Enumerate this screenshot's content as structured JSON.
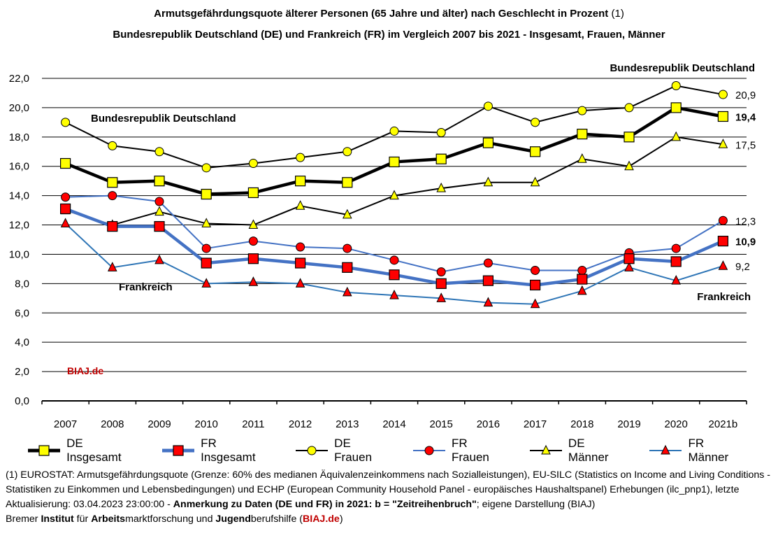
{
  "title": {
    "line1_bold": "Armutsgefährdungsquote älterer Personen (65 Jahre und älter) nach Geschlecht in Prozent",
    "line1_normal": "(1)",
    "line2": "Bundesrepublik Deutschland (DE) und Frankreich (FR) im Vergleich 2007 bis 2021 - Insgesamt, Frauen, Männer"
  },
  "chart_data": {
    "type": "line",
    "categories": [
      "2007",
      "2008",
      "2009",
      "2010",
      "2011",
      "2012",
      "2013",
      "2014",
      "2015",
      "2016",
      "2017",
      "2018",
      "2019",
      "2020",
      "2021b"
    ],
    "ylim": [
      0,
      22
    ],
    "yticks": [
      "0,0",
      "2,0",
      "4,0",
      "6,0",
      "8,0",
      "10,0",
      "12,0",
      "14,0",
      "16,0",
      "18,0",
      "20,0",
      "22,0"
    ],
    "grid": true,
    "series": [
      {
        "name": "DE Insgesamt",
        "color": "#000000",
        "marker": "square",
        "width": "thick",
        "values": [
          16.2,
          14.9,
          15.0,
          14.1,
          14.2,
          15.0,
          14.9,
          16.3,
          16.5,
          17.6,
          17.0,
          18.2,
          18.0,
          20.0,
          19.4
        ],
        "end_label": "19,4",
        "end_bold": true
      },
      {
        "name": "FR Insgesamt",
        "color": "#4472c4",
        "marker": "square",
        "width": "thick",
        "values": [
          13.1,
          11.9,
          11.9,
          9.4,
          9.7,
          9.4,
          9.1,
          8.6,
          8.0,
          8.2,
          7.9,
          8.3,
          9.7,
          9.5,
          10.9
        ],
        "end_label": "10,9",
        "end_bold": true
      },
      {
        "name": "DE Frauen",
        "color": "#000000",
        "marker": "circle",
        "width": "thin",
        "values": [
          19.0,
          17.4,
          17.0,
          15.9,
          16.2,
          16.6,
          17.0,
          18.4,
          18.3,
          20.1,
          19.0,
          19.8,
          20.0,
          21.5,
          20.9
        ],
        "end_label": "20,9",
        "end_bold": false
      },
      {
        "name": "FR Frauen",
        "color": "#4472c4",
        "marker": "circle",
        "width": "thin",
        "values": [
          13.9,
          14.0,
          13.6,
          10.4,
          10.9,
          10.5,
          10.4,
          9.6,
          8.8,
          9.4,
          8.9,
          8.9,
          10.1,
          10.4,
          12.3
        ],
        "end_label": "12,3",
        "end_bold": false
      },
      {
        "name": "DE Männer",
        "color": "#000000",
        "marker": "triangle",
        "width": "thin",
        "values": [
          13.0,
          12.0,
          12.9,
          12.1,
          12.0,
          13.3,
          12.7,
          14.0,
          14.5,
          14.9,
          14.9,
          16.5,
          16.0,
          18.0,
          17.5
        ],
        "end_label": "17,5",
        "end_bold": false
      },
      {
        "name": "FR Männer",
        "color": "#2e75b6",
        "marker": "triangle",
        "width": "thin",
        "values": [
          12.1,
          9.1,
          9.6,
          8.0,
          8.1,
          8.0,
          7.4,
          7.2,
          7.0,
          6.7,
          6.6,
          7.5,
          9.1,
          8.2,
          9.2
        ],
        "end_label": "9,2",
        "end_bold": false
      }
    ],
    "annotations": {
      "de_left": "Bundesrepublik Deutschland",
      "de_right": "Bundesrepublik Deutschland",
      "fr_left": "Frankreich",
      "fr_right": "Frankreich",
      "source": "BIAJ.de"
    }
  },
  "legend": [
    {
      "label": "DE Insgesamt",
      "marker": "square",
      "color": "#000000",
      "thick": true
    },
    {
      "label": "FR Insgesamt",
      "marker": "square",
      "color": "#4472c4",
      "thick": true
    },
    {
      "label": "DE Frauen",
      "marker": "circle",
      "color": "#000000",
      "thick": false
    },
    {
      "label": "FR Frauen",
      "marker": "circle",
      "color": "#4472c4",
      "thick": false
    },
    {
      "label": "DE Männer",
      "marker": "triangle",
      "color": "#000000",
      "thick": false
    },
    {
      "label": "FR Männer",
      "marker": "triangle",
      "color": "#2e75b6",
      "thick": false
    }
  ],
  "footnote": {
    "p1": "(1) EUROSTAT: Armutsgefährdungsquote (Grenze: 60% des medianen Äquivalenzeinkommens nach Sozialleistungen), EU-SILC (Statistics on Income and Living Conditions - Statistiken zu Einkommen und Lebensbedingungen) und ECHP (European Community Household Panel - europäisches Haushaltspanel) Erhebungen (ilc_pnp1), letzte Aktualisierung: 03.04.2023 23:00:00 - ",
    "p1_bold": "Anmerkung zu Daten (DE und FR) in 2021: b = \"Zeitreihenbruch\"",
    "p1_end": "; eigene Darstellung (BIAJ)",
    "l2_a": "Bremer ",
    "l2_b": "Institut",
    "l2_c": " für ",
    "l2_d": "Arbeits",
    "l2_e": "marktforschung und ",
    "l2_f": "Jugend",
    "l2_g": "berufshilfe (",
    "l2_h": "BIAJ.de",
    "l2_i": ")"
  },
  "colors": {
    "accent_red": "#c00000",
    "fr_blue": "#4472c4",
    "marker_yellow": "#ffff00",
    "marker_red": "#ff0000"
  }
}
